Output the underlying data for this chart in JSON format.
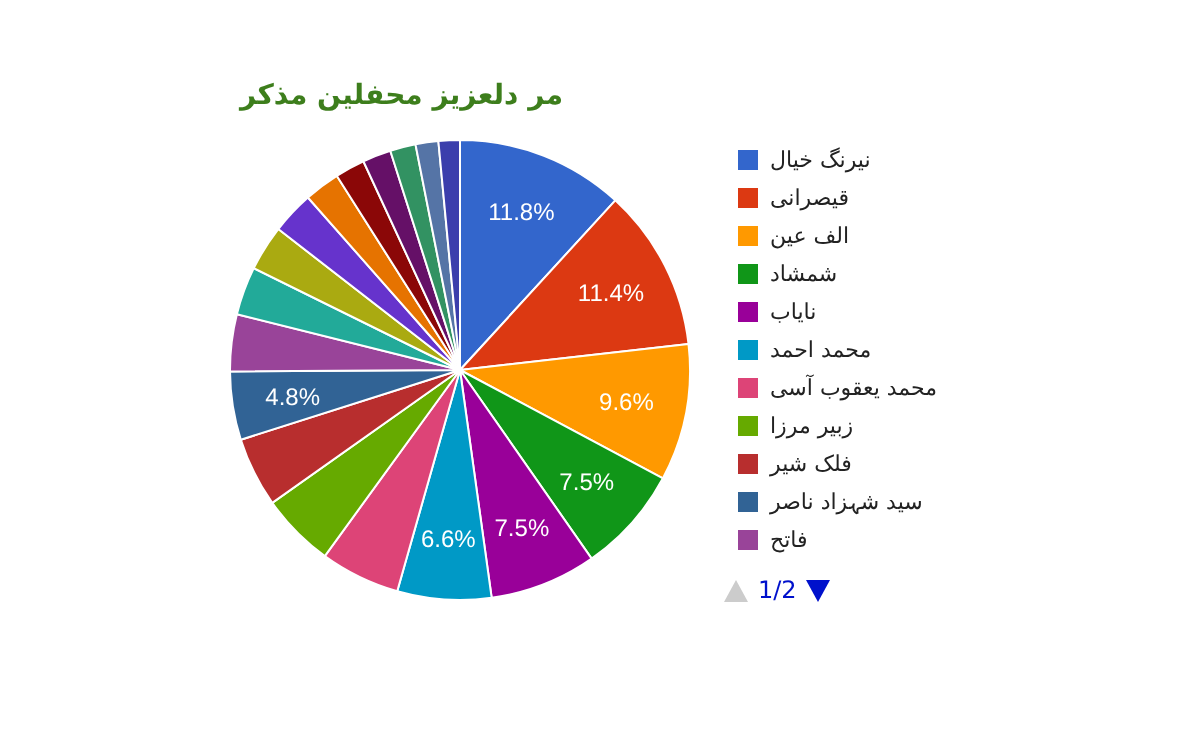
{
  "chart_data": {
    "type": "pie",
    "title": "مر دلعزیز محفلین مذکر",
    "categories": [
      "نیرنگ خیال",
      "قیصرانی",
      "الف عین",
      "شمشاد",
      "نایاب",
      "محمد احمد",
      "محمد یعقوب آسی",
      "زبیر مرزا",
      "فلک شیر",
      "سید شہزاد ناصر",
      "فاتح",
      null,
      null,
      null,
      null,
      null,
      null,
      null,
      null,
      null
    ],
    "values": [
      11.8,
      11.4,
      9.6,
      7.5,
      7.5,
      6.6,
      5.6,
      5.2,
      4.9,
      4.8,
      4.0,
      3.4,
      3.2,
      3.0,
      2.5,
      2.1,
      2.0,
      1.8,
      1.6,
      1.5
    ],
    "colors": [
      "#3366cc",
      "#dc3912",
      "#ff9900",
      "#109618",
      "#990099",
      "#0099c6",
      "#dd4477",
      "#66aa00",
      "#b82e2e",
      "#316395",
      "#994499",
      "#22aa99",
      "#aaaa11",
      "#6633cc",
      "#e67300",
      "#8b0707",
      "#651067",
      "#329262",
      "#5574a6",
      "#3b3eac"
    ],
    "value_labels": [
      "11.8%",
      "11.4%",
      "9.6%",
      "7.5%",
      "7.5%",
      "6.6%",
      null,
      null,
      null,
      "4.8%",
      null,
      null,
      null,
      null,
      null,
      null,
      null,
      null,
      null,
      null
    ],
    "legend": "right",
    "annotations": [
      "1/2"
    ]
  }
}
